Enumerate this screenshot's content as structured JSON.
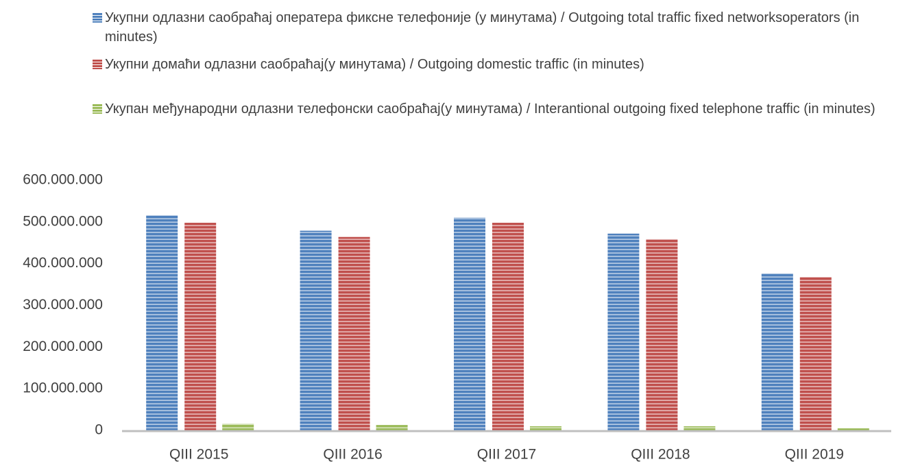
{
  "chart_data": {
    "type": "bar",
    "categories": [
      "QIII 2015",
      "QIII 2016",
      "QIII 2017",
      "QIII 2018",
      "QIII 2019"
    ],
    "series": [
      {
        "name": "Укупни одлазни саобраћај оператера фиксне телефоније (у минутама) / Outgoing total traffic fixed networksoperators (in minutes)",
        "color": "#4f81bd",
        "values": [
          516000000,
          479000000,
          510000000,
          472000000,
          377000000
        ]
      },
      {
        "name": "Укупни домаћи одлазни саобраћај(у минутама) / Outgoing domestic traffic  (in minutes)",
        "color": "#c0504d",
        "values": [
          498000000,
          464000000,
          498000000,
          459000000,
          368000000
        ]
      },
      {
        "name": "Укупан међународни одлазни телефонски саобраћај(у минутама) / Interantional outgoing fixed telephone traffic (in minutes)",
        "color": "#9bbb59",
        "values": [
          16000000,
          13000000,
          10000000,
          10000000,
          5000000
        ]
      }
    ],
    "ylim": [
      0,
      600000000
    ],
    "yticks": [
      0,
      {
        "value": 100000000,
        "label": "100.000.000"
      },
      {
        "value": 200000000,
        "label": "200.000.000"
      },
      {
        "value": 300000000,
        "label": "300.000.000"
      },
      {
        "value": 400000000,
        "label": "400.000.000"
      },
      {
        "value": 500000000,
        "label": "500.000.000"
      },
      {
        "value": 600000000,
        "label": "600.000.000"
      }
    ],
    "grid": false,
    "legend": "top"
  }
}
